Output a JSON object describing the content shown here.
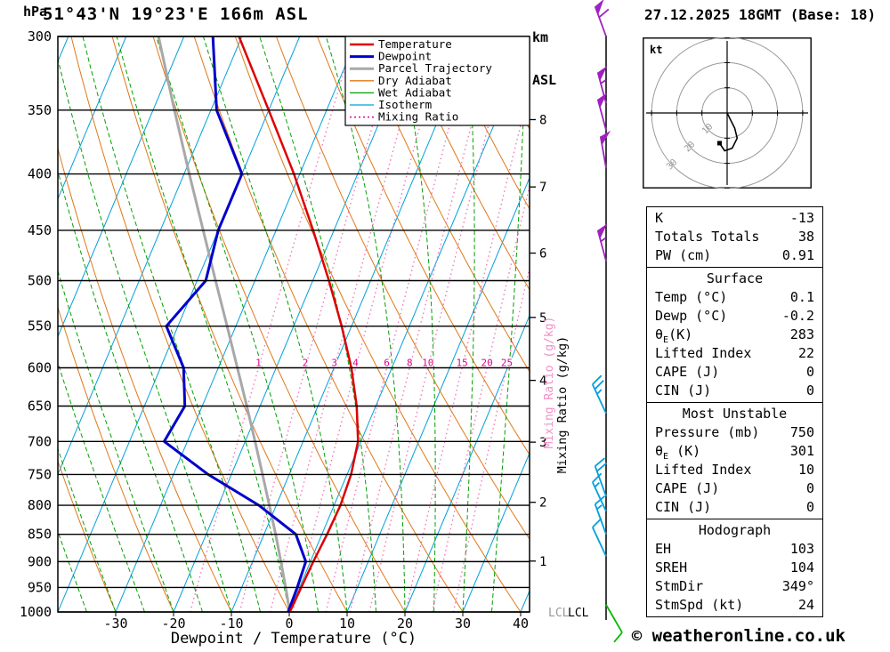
{
  "header": {
    "station": "51°43'N 19°23'E 166m ASL",
    "km_label_1": "km",
    "km_label_2": "ASL",
    "datetime": "27.12.2025 18GMT (Base: 18)"
  },
  "footer": {
    "copyright": "© weatheronline.co.uk"
  },
  "colors": {
    "temperature": "#dd0000",
    "dewpoint": "#0000cc",
    "parcel": "#a8a8a8",
    "dry_adiabat": "#e07818",
    "wet_adiabat": "#00a000",
    "isotherm": "#00a0dc",
    "mixing_ratio": "#f070b8",
    "mixing_label": "#e00090",
    "wind_upper": "#a020c0",
    "wind_mid": "#00a0dc",
    "wind_low": "#00bb00"
  },
  "chart_data": {
    "type": "skewt-log-p",
    "pressure_axis_label": "hPa",
    "pressure_ticks": [
      300,
      350,
      400,
      450,
      500,
      550,
      600,
      650,
      700,
      750,
      800,
      850,
      900,
      950,
      1000
    ],
    "temp_ticks": [
      -30,
      -20,
      -10,
      0,
      10,
      20,
      30,
      40
    ],
    "xaxis_title": "Dewpoint / Temperature (°C)",
    "km_ticks": [
      {
        "km": 8,
        "p": 357
      },
      {
        "km": 7,
        "p": 411
      },
      {
        "km": 6,
        "p": 472
      },
      {
        "km": 5,
        "p": 540
      },
      {
        "km": 4,
        "p": 616
      },
      {
        "km": 3,
        "p": 701
      },
      {
        "km": 2,
        "p": 795
      },
      {
        "km": 1,
        "p": 899
      }
    ],
    "mixing_axis_label": "Mixing Ratio (g/kg)",
    "mixing_ratio_values": [
      1,
      2,
      3,
      4,
      6,
      8,
      10,
      15,
      20,
      25
    ],
    "isotherms": {
      "min": -80,
      "max": 40,
      "step": 10
    },
    "dry_adiabats": {
      "min": -40,
      "max": 110,
      "step": 10
    },
    "wet_adiabats": {
      "min": -40,
      "max": 35,
      "step": 5
    },
    "lcl_label": "LCL",
    "legend": [
      {
        "label": "Temperature",
        "color": "#dd0000",
        "w": 2.5,
        "dash": ""
      },
      {
        "label": "Dewpoint",
        "color": "#0000cc",
        "w": 3,
        "dash": ""
      },
      {
        "label": "Parcel Trajectory",
        "color": "#a8a8a8",
        "w": 3,
        "dash": ""
      },
      {
        "label": "Dry Adiabat",
        "color": "#e07818",
        "w": 1.3,
        "dash": ""
      },
      {
        "label": "Wet Adiabat",
        "color": "#00a000",
        "w": 1.3,
        "dash": ""
      },
      {
        "label": "Isotherm",
        "color": "#00a0dc",
        "w": 1.3,
        "dash": ""
      },
      {
        "label": "Mixing Ratio",
        "color": "#e00090",
        "w": 1.5,
        "dash": "2 3"
      }
    ],
    "sounding": {
      "pressure": [
        1000,
        950,
        900,
        850,
        800,
        750,
        700,
        650,
        600,
        550,
        500,
        450,
        400,
        350,
        300
      ],
      "temperature": [
        0.1,
        0.3,
        0.5,
        0.9,
        1.1,
        0.7,
        -0.5,
        -3.3,
        -7.0,
        -11.7,
        -17.2,
        -23.6,
        -31.0,
        -40.0,
        -50.5
      ],
      "dewpoint": [
        -0.2,
        -0.4,
        -0.8,
        -4.5,
        -13.0,
        -24.0,
        -34.0,
        -33.0,
        -36.0,
        -42.0,
        -38.5,
        -40.0,
        -40.0,
        -49.0,
        -55.0
      ],
      "parcel": [
        0.1,
        -2.4,
        -5.1,
        -8.0,
        -11.2,
        -14.6,
        -18.3,
        -22.3,
        -26.7,
        -31.5,
        -36.8,
        -42.6,
        -49.1,
        -56.3,
        -64.4
      ]
    },
    "winds": [
      {
        "p": 300,
        "dir": 340,
        "spd": 60,
        "band": "upper"
      },
      {
        "p": 345,
        "dir": 345,
        "spd": 55,
        "band": "upper"
      },
      {
        "p": 365,
        "dir": 345,
        "spd": 50,
        "band": "upper"
      },
      {
        "p": 395,
        "dir": 350,
        "spd": 50,
        "band": "upper"
      },
      {
        "p": 480,
        "dir": 345,
        "spd": 55,
        "band": "upper"
      },
      {
        "p": 660,
        "dir": 335,
        "spd": 25,
        "band": "mid"
      },
      {
        "p": 785,
        "dir": 340,
        "spd": 20,
        "band": "mid"
      },
      {
        "p": 810,
        "dir": 335,
        "spd": 15,
        "band": "mid"
      },
      {
        "p": 850,
        "dir": 340,
        "spd": 15,
        "band": "mid"
      },
      {
        "p": 890,
        "dir": 335,
        "spd": 10,
        "band": "mid"
      },
      {
        "p": 985,
        "dir": 150,
        "spd": 10,
        "band": "low"
      }
    ],
    "hodograph": {
      "unit_label": "kt",
      "rings": [
        10,
        20,
        30
      ],
      "trace": [
        [
          0,
          0
        ],
        [
          1,
          -2
        ],
        [
          3,
          -6
        ],
        [
          4,
          -10
        ],
        [
          2,
          -14
        ],
        [
          -1,
          -15
        ],
        [
          -3,
          -12
        ]
      ],
      "marker": [
        -3,
        -12
      ]
    }
  },
  "stats": {
    "groups": [
      {
        "header": null,
        "rows": [
          [
            "K",
            "-13"
          ],
          [
            "Totals Totals",
            "38"
          ],
          [
            "PW (cm)",
            "0.91"
          ]
        ]
      },
      {
        "header": "Surface",
        "rows": [
          [
            "Temp (°C)",
            "0.1"
          ],
          [
            "Dewp (°C)",
            "-0.2"
          ],
          [
            "θ_E(K)",
            "283"
          ],
          [
            "Lifted Index",
            "22"
          ],
          [
            "CAPE (J)",
            "0"
          ],
          [
            "CIN (J)",
            "0"
          ]
        ]
      },
      {
        "header": "Most Unstable",
        "rows": [
          [
            "Pressure (mb)",
            "750"
          ],
          [
            "θ_E (K)",
            "301"
          ],
          [
            "Lifted Index",
            "10"
          ],
          [
            "CAPE (J)",
            "0"
          ],
          [
            "CIN (J)",
            "0"
          ]
        ]
      },
      {
        "header": "Hodograph",
        "rows": [
          [
            "EH",
            "103"
          ],
          [
            "SREH",
            "104"
          ],
          [
            "StmDir",
            "349°"
          ],
          [
            "StmSpd (kt)",
            "24"
          ]
        ]
      }
    ]
  }
}
